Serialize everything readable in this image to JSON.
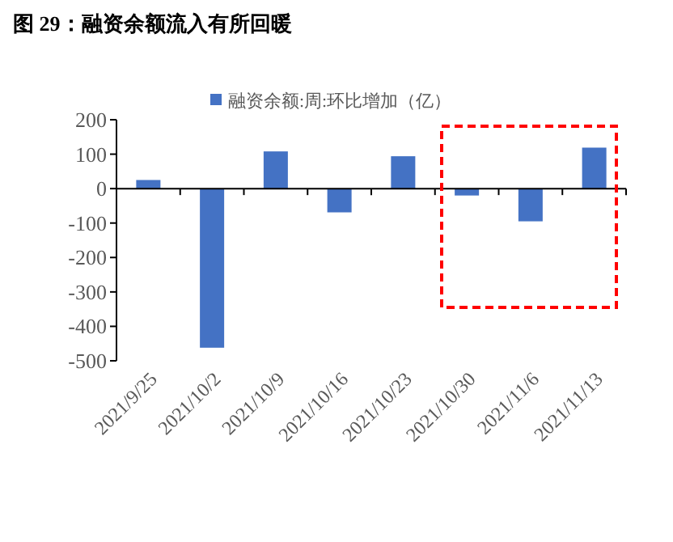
{
  "chart_data": {
    "type": "bar",
    "title": "图 29：融资余额流入有所回暖",
    "categories": [
      "2021/9/25",
      "2021/10/2",
      "2021/10/9",
      "2021/10/16",
      "2021/10/23",
      "2021/10/30",
      "2021/11/6",
      "2021/11/13"
    ],
    "series": [
      {
        "name": "融资余额:周:环比增加（亿）",
        "color": "#4472c4",
        "values": [
          25,
          -462,
          108,
          -69,
          94,
          -20,
          -95,
          119
        ]
      }
    ],
    "ylim": [
      -500,
      200
    ],
    "yticks": [
      -500,
      -400,
      -300,
      -200,
      -100,
      0,
      100,
      200
    ],
    "legend": "top"
  }
}
